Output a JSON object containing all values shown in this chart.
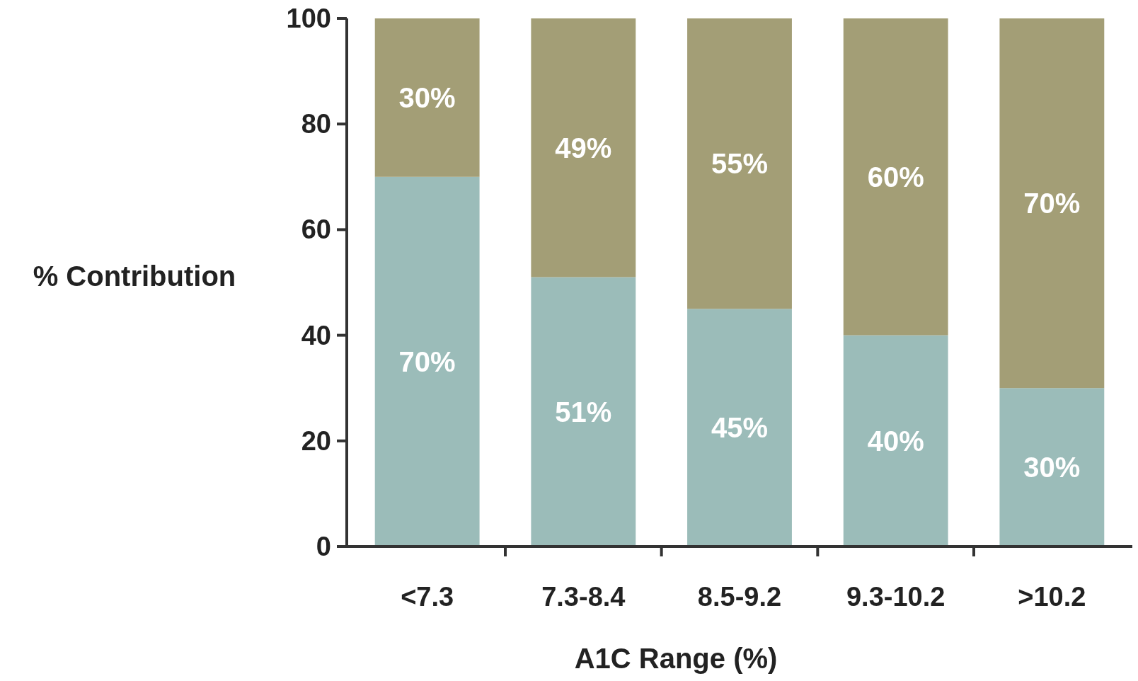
{
  "chart_data": {
    "type": "bar",
    "stacked": true,
    "xlabel": "A1C Range (%)",
    "ylabel": "% Contribution",
    "categories": [
      "<7.3",
      "7.3-8.4",
      "8.5-9.2",
      "9.3-10.2",
      ">10.2"
    ],
    "series": [
      {
        "color": "#9bbcb9",
        "values": [
          70,
          51,
          45,
          40,
          30
        ],
        "value_labels": [
          "70%",
          "51%",
          "45%",
          "40%",
          "30%"
        ]
      },
      {
        "color": "#a39e76",
        "values": [
          30,
          49,
          55,
          60,
          70
        ],
        "value_labels": [
          "30%",
          "49%",
          "55%",
          "60%",
          "70%"
        ]
      }
    ],
    "ylim": [
      0,
      100
    ],
    "yticks": [
      0,
      20,
      40,
      60,
      80,
      100
    ],
    "grid": false
  }
}
